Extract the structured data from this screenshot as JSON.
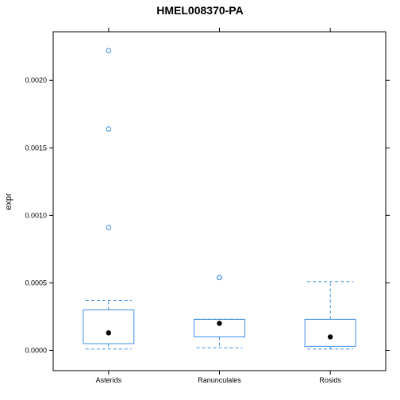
{
  "chart_data": {
    "type": "box",
    "title": "HMEL008370-PA",
    "xlabel": "",
    "ylabel": "expr",
    "ylim": [
      -0.00015,
      0.00236
    ],
    "yticks": [
      0.0,
      0.0005,
      0.001,
      0.0015,
      0.002
    ],
    "ytick_labels": [
      "0.0000",
      "0.0005",
      "0.0010",
      "0.0015",
      "0.0020"
    ],
    "categories": [
      "Asterids",
      "Ranunculales",
      "Rosids"
    ],
    "boxes": [
      {
        "category": "Asterids",
        "whisker_low": 1e-05,
        "q1": 5e-05,
        "median": 0.00013,
        "q3": 0.0003,
        "whisker_high": 0.00037,
        "outliers": [
          0.00091,
          0.00164,
          0.00222
        ]
      },
      {
        "category": "Ranunculales",
        "whisker_low": 2e-05,
        "q1": 0.0001,
        "median": 0.0002,
        "q3": 0.00023,
        "whisker_high": 0.00023,
        "outliers": [
          0.00054,
          0.00054
        ]
      },
      {
        "category": "Rosids",
        "whisker_low": 1e-05,
        "q1": 3e-05,
        "median": 0.0001,
        "q3": 0.00023,
        "whisker_high": 0.00051,
        "outliers": []
      }
    ],
    "colors": {
      "box": "#3C8FE6",
      "median_dot": "#000000",
      "frame": "#000000"
    }
  }
}
